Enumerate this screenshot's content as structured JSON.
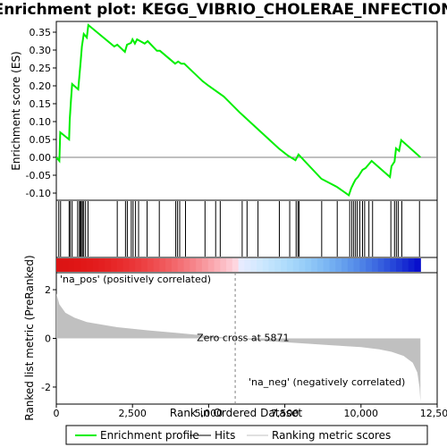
{
  "colors": {
    "es_line": "#00ee00",
    "hits": "#000000",
    "metric_fill": "#c0c0c0",
    "pos_label": "#cc0000",
    "neg_label": "#0000cc",
    "zero_line": "#808080"
  },
  "chart_data": {
    "type": "line",
    "title": "Enrichment plot: KEGG_VIBRIO_CHOLERAE_INFECTION",
    "x_label": "Rank in Ordered Dataset",
    "x_ticks": [
      "0",
      "2,500",
      "5,000",
      "7,500",
      "10,000",
      "12,500"
    ],
    "x_tick_values": [
      0,
      2500,
      5000,
      7500,
      10000,
      12500
    ],
    "xlim": [
      0,
      12500
    ],
    "enrichment": {
      "ylabel": "Enrichment score (ES)",
      "ylim": [
        -0.12,
        0.38
      ],
      "y_ticks": [
        "-0.10",
        "-0.05",
        "0.00",
        "0.05",
        "0.10",
        "0.15",
        "0.20",
        "0.25",
        "0.30",
        "0.35"
      ],
      "y_tick_values": [
        -0.1,
        -0.05,
        0,
        0.05,
        0.1,
        0.15,
        0.2,
        0.25,
        0.3,
        0.35
      ],
      "series_name": "Enrichment profile",
      "points": [
        [
          0,
          0.0
        ],
        [
          100,
          -0.01
        ],
        [
          130,
          0.07
        ],
        [
          420,
          0.05
        ],
        [
          440,
          0.105
        ],
        [
          480,
          0.16
        ],
        [
          520,
          0.205
        ],
        [
          720,
          0.19
        ],
        [
          760,
          0.23
        ],
        [
          800,
          0.27
        ],
        [
          840,
          0.31
        ],
        [
          900,
          0.345
        ],
        [
          1000,
          0.335
        ],
        [
          1050,
          0.37
        ],
        [
          1900,
          0.31
        ],
        [
          2000,
          0.315
        ],
        [
          2250,
          0.295
        ],
        [
          2320,
          0.315
        ],
        [
          2450,
          0.32
        ],
        [
          2500,
          0.33
        ],
        [
          2580,
          0.318
        ],
        [
          2650,
          0.33
        ],
        [
          2900,
          0.318
        ],
        [
          3000,
          0.325
        ],
        [
          3300,
          0.298
        ],
        [
          3400,
          0.298
        ],
        [
          3900,
          0.262
        ],
        [
          4000,
          0.268
        ],
        [
          4100,
          0.262
        ],
        [
          4200,
          0.262
        ],
        [
          4800,
          0.213
        ],
        [
          5000,
          0.2
        ],
        [
          5500,
          0.17
        ],
        [
          6000,
          0.127
        ],
        [
          6600,
          0.08
        ],
        [
          7300,
          0.025
        ],
        [
          7600,
          0.005
        ],
        [
          7850,
          -0.008
        ],
        [
          7950,
          0.008
        ],
        [
          8700,
          -0.06
        ],
        [
          9200,
          -0.082
        ],
        [
          9600,
          -0.106
        ],
        [
          9680,
          -0.086
        ],
        [
          9760,
          -0.072
        ],
        [
          9820,
          -0.062
        ],
        [
          9900,
          -0.055
        ],
        [
          10050,
          -0.035
        ],
        [
          10150,
          -0.03
        ],
        [
          10250,
          -0.02
        ],
        [
          10350,
          -0.01
        ],
        [
          10950,
          -0.055
        ],
        [
          11000,
          -0.025
        ],
        [
          11100,
          -0.012
        ],
        [
          11150,
          0.025
        ],
        [
          11250,
          0.018
        ],
        [
          11320,
          0.048
        ],
        [
          11950,
          0.0
        ]
      ]
    },
    "hits": [
      80,
      140,
      420,
      460,
      520,
      700,
      760,
      790,
      820,
      860,
      900,
      960,
      1040,
      2000,
      2270,
      2330,
      2460,
      2520,
      2600,
      2700,
      2980,
      3380,
      3920,
      3980,
      4050,
      4240,
      4880,
      5230,
      5380,
      6100,
      6260,
      6620,
      7320,
      7660,
      7870,
      7930,
      7970,
      8710,
      9220,
      9630,
      9700,
      9760,
      9820,
      9880,
      9960,
      10050,
      10120,
      10260,
      10380,
      10980,
      11100,
      11160,
      11220,
      11340,
      11920
    ],
    "ranking": {
      "ylabel": "Ranked list metric (PreRanked)",
      "ylim": [
        -2.7,
        2.7
      ],
      "y_ticks": [
        "-2",
        "0",
        "2"
      ],
      "y_tick_values": [
        -2,
        0,
        2
      ],
      "curve": [
        [
          0,
          1.85
        ],
        [
          100,
          1.4
        ],
        [
          300,
          1.05
        ],
        [
          600,
          0.85
        ],
        [
          1000,
          0.67
        ],
        [
          2000,
          0.46
        ],
        [
          3000,
          0.33
        ],
        [
          4000,
          0.22
        ],
        [
          5000,
          0.1
        ],
        [
          5871,
          0.0
        ],
        [
          7000,
          -0.12
        ],
        [
          8000,
          -0.2
        ],
        [
          9000,
          -0.28
        ],
        [
          10000,
          -0.36
        ],
        [
          10600,
          -0.45
        ],
        [
          11000,
          -0.55
        ],
        [
          11400,
          -0.72
        ],
        [
          11700,
          -1.0
        ],
        [
          11850,
          -1.4
        ],
        [
          11920,
          -2.0
        ],
        [
          11950,
          -2.6
        ]
      ],
      "zero_cross_label": "Zero cross at 5871",
      "zero_cross": 5871,
      "pos_label": "'na_pos' (positively correlated)",
      "neg_label": "'na_neg' (negatively correlated)",
      "colorbar_split": 5871,
      "colorbar_end": 11950
    },
    "legend": [
      {
        "name": "Enrichment profile",
        "color": "#00ee00"
      },
      {
        "name": "Hits",
        "color": "#000000"
      },
      {
        "name": "Ranking metric scores",
        "color": "#c0c0c0"
      }
    ]
  }
}
